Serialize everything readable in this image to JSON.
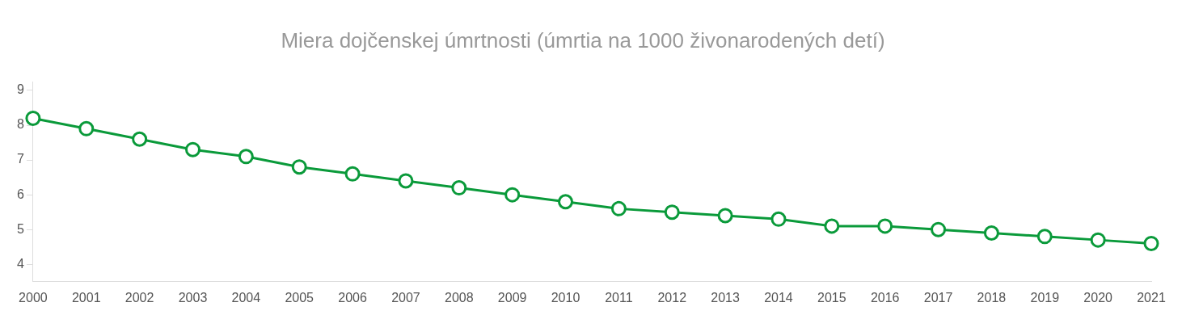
{
  "chart_data": {
    "type": "line",
    "title": "Miera dojčenskej úmrtnosti (úmrtia na 1000 živonarodených detí)",
    "categories": [
      "2000",
      "2001",
      "2002",
      "2003",
      "2004",
      "2005",
      "2006",
      "2007",
      "2008",
      "2009",
      "2010",
      "2011",
      "2012",
      "2013",
      "2014",
      "2015",
      "2016",
      "2017",
      "2018",
      "2019",
      "2020",
      "2021"
    ],
    "series": [
      {
        "color": "#0a9a3a",
        "values": [
          8.2,
          7.9,
          7.6,
          7.3,
          7.1,
          6.8,
          6.6,
          6.4,
          6.2,
          6.0,
          5.8,
          5.6,
          5.5,
          5.4,
          5.3,
          5.1,
          5.1,
          5.0,
          4.9,
          4.8,
          4.7,
          4.6
        ]
      }
    ],
    "ylim": [
      3.5,
      9.25
    ],
    "yticks": [
      4,
      5,
      6,
      7,
      8,
      9
    ],
    "grid": false,
    "legend": false,
    "marker": "circle",
    "line_style": "solid"
  }
}
